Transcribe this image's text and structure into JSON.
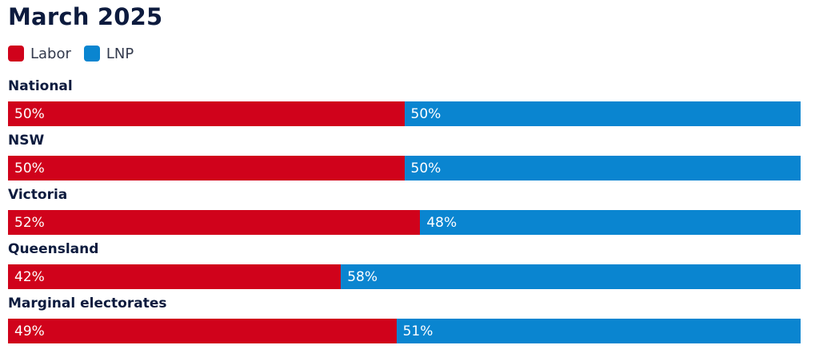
{
  "chart_data": {
    "type": "bar",
    "orientation": "horizontal",
    "stacked": true,
    "title": "March 2025",
    "legend_position": "top-left",
    "grid": false,
    "xlim": [
      0,
      100
    ],
    "categories": [
      "National",
      "NSW",
      "Victoria",
      "Queensland",
      "Marginal electorates"
    ],
    "series": [
      {
        "name": "Labor",
        "color": "#d0021b",
        "values": [
          50,
          50,
          52,
          42,
          49
        ],
        "labels": [
          "50%",
          "50%",
          "52%",
          "42%",
          "49%"
        ]
      },
      {
        "name": "LNP",
        "color": "#0a85d0",
        "values": [
          50,
          50,
          48,
          58,
          51
        ],
        "labels": [
          "50%",
          "50%",
          "48%",
          "58%",
          "51%"
        ]
      }
    ]
  }
}
